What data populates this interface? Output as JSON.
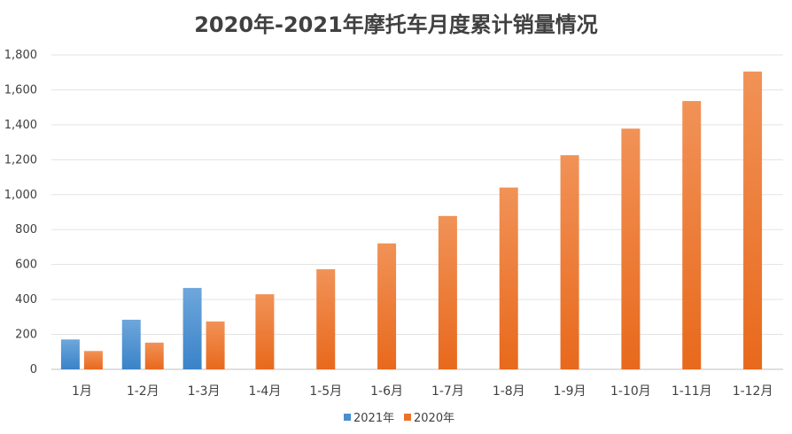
{
  "chart_data": {
    "type": "bar",
    "title": "2020年-2021年摩托车月度累计销量情况",
    "categories": [
      "1月",
      "1-2月",
      "1-3月",
      "1-4月",
      "1-5月",
      "1-6月",
      "1-7月",
      "1-8月",
      "1-9月",
      "1-10月",
      "1-11月",
      "1-12月"
    ],
    "series": [
      {
        "name": "2021年",
        "color": "#4a8fcf",
        "values": [
          171,
          284,
          466,
          null,
          null,
          null,
          null,
          null,
          null,
          null,
          null,
          null
        ]
      },
      {
        "name": "2020年",
        "color": "#ec7228",
        "values": [
          105,
          153,
          274,
          430,
          573,
          721,
          878,
          1041,
          1226,
          1378,
          1536,
          1705
        ]
      }
    ],
    "ylim": [
      0,
      1800
    ],
    "yticks": [
      "0",
      "200",
      "400",
      "600",
      "800",
      "1,000",
      "1,200",
      "1,400",
      "1,600",
      "1,800"
    ],
    "grid": true,
    "legend_position": "bottom"
  }
}
